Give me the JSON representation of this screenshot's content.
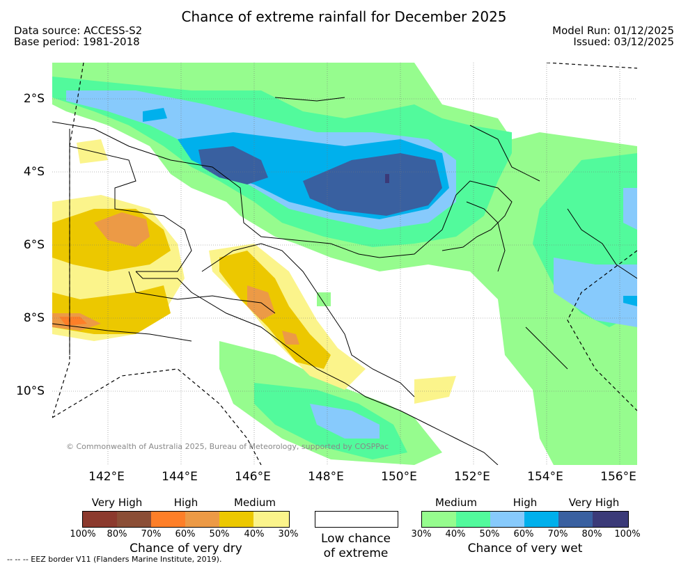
{
  "title": "Chance of extreme rainfall for December 2025",
  "meta": {
    "data_source": "Data source: ACCESS-S2",
    "base_period": "Base period: 1981-2018",
    "model_run": "Model Run: 01/12/2025",
    "issued": "Issued: 03/12/2025"
  },
  "axes": {
    "lat_labels": [
      "2°S",
      "4°S",
      "6°S",
      "8°S",
      "10°S"
    ],
    "lon_labels": [
      "142°E",
      "144°E",
      "146°E",
      "148°E",
      "150°E",
      "152°E",
      "154°E",
      "156°E"
    ]
  },
  "copyright": "© Commonwealth of Australia 2025, Bureau of Meteorology, supported by COSPPac",
  "legend": {
    "dry": {
      "categories": [
        "Very High",
        "High",
        "Medium"
      ],
      "colors": [
        "#8c3a2e",
        "#8b4e36",
        "#fe7f28",
        "#ec9a46",
        "#ecc800",
        "#fbf48b"
      ],
      "ticks": [
        "100%",
        "80%",
        "70%",
        "60%",
        "50%",
        "40%",
        "30%"
      ],
      "caption": "Chance of very dry"
    },
    "low": {
      "line1": "Low chance",
      "line2": "of extreme"
    },
    "wet": {
      "categories": [
        "Medium",
        "High",
        "Very High"
      ],
      "colors": [
        "#96fc8e",
        "#52fa9c",
        "#87cafc",
        "#00b0ec",
        "#3960a0",
        "#3b3a78"
      ],
      "ticks": [
        "30%",
        "40%",
        "50%",
        "60%",
        "70%",
        "80%",
        "100%"
      ],
      "caption": "Chance of very wet"
    }
  },
  "footer": "-- -- -- EEZ border V11 (Flanders Marine Institute, 2019)."
}
